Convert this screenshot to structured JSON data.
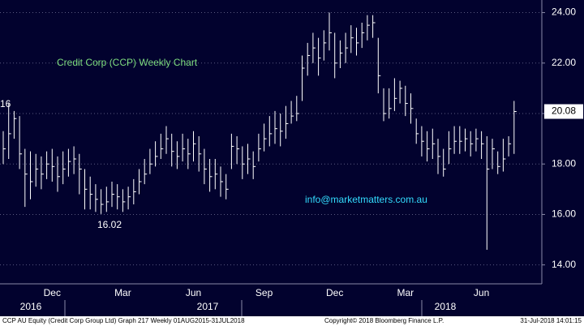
{
  "chart_data": {
    "type": "hlc",
    "annotations": [
      "Credit Corp (CCP) Weekly Chart",
      "info@marketmatters.com.au",
      "16"
    ],
    "categories": [
      null,
      null,
      null,
      null,
      null,
      null,
      null,
      null,
      null,
      "Dec",
      null,
      null,
      null,
      null,
      null,
      null,
      null,
      null,
      null,
      null,
      null,
      null,
      "Mar",
      null,
      null,
      null,
      null,
      null,
      null,
      null,
      null,
      null,
      null,
      null,
      null,
      "Jun",
      null,
      null,
      null,
      null,
      null,
      null,
      null,
      null,
      null,
      null,
      null,
      null,
      "Sep",
      null,
      null,
      null,
      null,
      null,
      null,
      null,
      null,
      null,
      null,
      null,
      null,
      "Dec",
      null,
      null,
      null,
      null,
      null,
      null,
      null,
      null,
      null,
      null,
      null,
      null,
      "Mar",
      null,
      null,
      null,
      null,
      null,
      null,
      null,
      null,
      null,
      null,
      null,
      null,
      null,
      "Jun",
      null,
      null,
      null,
      null,
      null,
      null
    ],
    "x_year_labels": [
      "2016",
      "2017",
      "2018"
    ],
    "high": [
      19.3,
      20.4,
      20.1,
      19.9,
      18.6,
      18.5,
      18.4,
      18.3,
      18.5,
      18.6,
      18.3,
      18.5,
      18.6,
      18.7,
      18.4,
      17.8,
      17.5,
      17.2,
      17.0,
      17.1,
      17.3,
      17.2,
      17.0,
      17.1,
      17.4,
      17.8,
      18.2,
      18.6,
      18.9,
      19.2,
      19.5,
      19.2,
      18.9,
      19.2,
      19.0,
      19.3,
      19.1,
      18.6,
      18.2,
      18.2,
      17.9,
      17.6,
      19.2,
      19.1,
      18.7,
      18.8,
      18.5,
      19.2,
      19.6,
      19.9,
      20.1,
      20.0,
      20.3,
      20.5,
      20.7,
      22.3,
      22.8,
      23.2,
      23.0,
      23.3,
      24.0,
      23.2,
      22.9,
      23.2,
      23.5,
      23.4,
      23.6,
      23.9,
      23.9,
      23.0,
      21.0,
      21.0,
      21.4,
      21.3,
      21.1,
      20.8,
      19.8,
      19.5,
      19.3,
      19.4,
      19.0,
      18.6,
      19.3,
      19.5,
      19.5,
      19.4,
      19.3,
      19.4,
      19.3,
      19.1,
      19.0,
      18.5,
      19.0,
      19.1,
      20.5
    ],
    "low": [
      18.0,
      18.2,
      19.0,
      17.8,
      16.3,
      16.6,
      17.1,
      17.0,
      17.4,
      17.3,
      16.9,
      17.2,
      17.5,
      17.6,
      16.8,
      16.2,
      16.2,
      16.1,
      16.02,
      16.1,
      16.3,
      16.2,
      16.1,
      16.2,
      16.4,
      16.8,
      17.2,
      17.6,
      17.9,
      18.2,
      18.4,
      17.9,
      17.8,
      18.1,
      17.8,
      18.1,
      17.7,
      17.2,
      16.9,
      17.0,
      16.7,
      16.6,
      17.8,
      18.0,
      17.4,
      17.6,
      17.4,
      18.1,
      18.5,
      18.7,
      18.8,
      18.7,
      19.0,
      19.6,
      19.7,
      20.5,
      21.5,
      22.0,
      21.5,
      22.1,
      22.5,
      21.4,
      21.8,
      22.0,
      22.4,
      22.3,
      22.6,
      22.9,
      23.0,
      20.8,
      19.7,
      19.8,
      20.1,
      20.4,
      19.9,
      19.6,
      18.8,
      18.3,
      18.1,
      18.2,
      17.6,
      17.5,
      18.0,
      18.4,
      18.4,
      18.5,
      18.3,
      18.5,
      18.2,
      14.6,
      17.8,
      17.6,
      17.7,
      18.3,
      18.4
    ],
    "close": [
      18.6,
      19.2,
      19.8,
      18.4,
      17.6,
      17.3,
      17.8,
      17.6,
      18.0,
      17.9,
      17.5,
      17.8,
      18.1,
      18.2,
      17.8,
      17.0,
      16.8,
      16.6,
      16.4,
      16.5,
      16.8,
      16.7,
      16.5,
      16.7,
      16.9,
      17.3,
      17.6,
      18.0,
      18.3,
      18.6,
      19.0,
      18.5,
      18.3,
      18.6,
      18.4,
      18.8,
      18.4,
      17.8,
      17.5,
      17.6,
      17.3,
      17.0,
      18.7,
      18.6,
      18.0,
      18.2,
      17.9,
      18.6,
      19.0,
      19.2,
      19.4,
      19.3,
      19.6,
      19.9,
      20.0,
      21.8,
      22.3,
      22.6,
      22.2,
      22.8,
      23.2,
      22.0,
      22.4,
      22.6,
      23.0,
      22.8,
      23.2,
      23.5,
      23.6,
      21.5,
      20.0,
      20.2,
      20.6,
      21.0,
      20.4,
      20.2,
      19.2,
      18.9,
      18.6,
      18.8,
      18.3,
      17.8,
      18.6,
      18.9,
      18.9,
      19.0,
      18.8,
      19.0,
      18.8,
      17.8,
      18.6,
      17.9,
      18.2,
      18.8,
      20.08
    ],
    "color": "#ffffff",
    "ylim": [
      13.25,
      24.5
    ],
    "yticks": [
      {
        "value": 14,
        "label": "14.00"
      },
      {
        "value": 16,
        "label": "16.00"
      },
      {
        "value": 18,
        "label": "18.00"
      },
      {
        "value": 20,
        "label": "20.00"
      },
      {
        "value": 22,
        "label": "22.00"
      },
      {
        "value": 24,
        "label": "24.00"
      }
    ],
    "grid": true,
    "footer": [
      "CCP AU Equity (Credit Corp Group Ltd) Graph 217  Weekly 01AUG2015-31JUL2018",
      "Copyright© 2018 Bloomberg Finance L.P.",
      "31-Jul-2018 14:01:15"
    ]
  }
}
